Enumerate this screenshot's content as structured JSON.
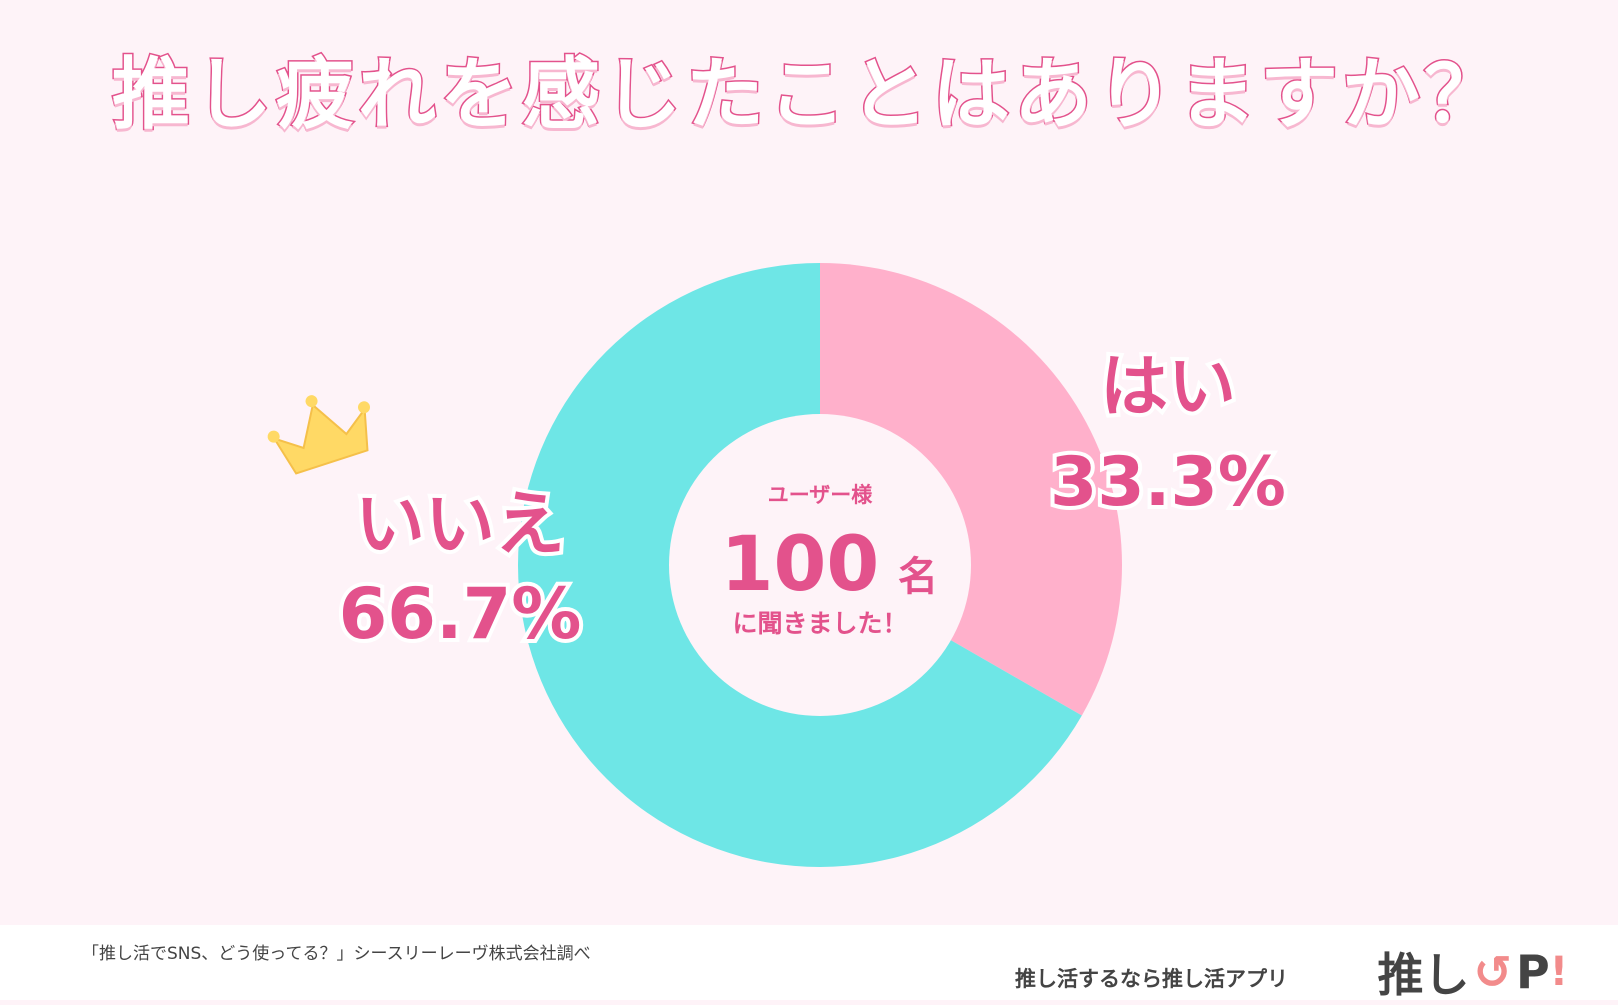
{
  "title": "推し疲れを感じたことはありますか？",
  "chart_data": {
    "type": "pie",
    "donut": true,
    "slices": [
      {
        "label": "はい",
        "value": 33.3,
        "display": "33.3%",
        "color": "#ffb0cb"
      },
      {
        "label": "いいえ",
        "value": 66.7,
        "display": "66.7%",
        "color": "#6ee6e6"
      }
    ],
    "center": {
      "top": "ユーザー様",
      "number": "100",
      "unit": "名",
      "bottom": "に聞きました！"
    },
    "winner_mark": "crown-icon"
  },
  "footer": {
    "source": "「推し活でSNS、どう使ってる？」シースリーレーヴ株式会社調べ",
    "promo": "推し活するなら推し活アプリ",
    "logo_text": "推し",
    "logo_letter": "P",
    "logo_bang": "!"
  },
  "colors": {
    "accent": "#e3528c",
    "crown": "#ffd965"
  }
}
